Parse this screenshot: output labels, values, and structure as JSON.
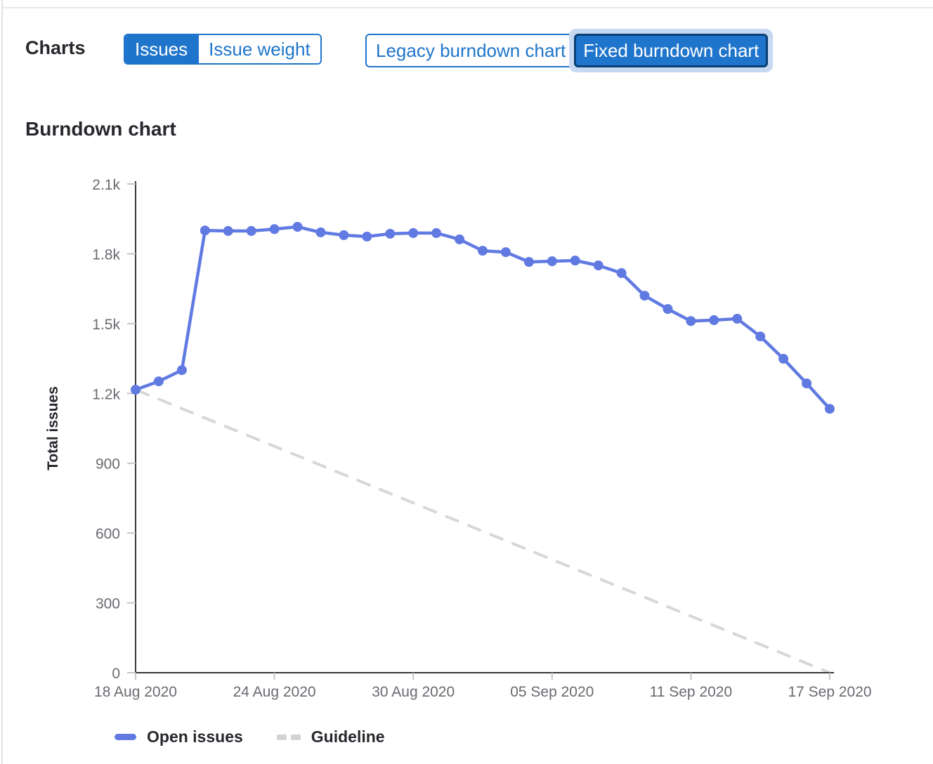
{
  "page": {
    "charts_label": "Charts",
    "section_title": "Burndown chart"
  },
  "toggles": {
    "metric": {
      "options": [
        {
          "label": "Issues",
          "selected": true
        },
        {
          "label": "Issue weight",
          "selected": false
        }
      ]
    },
    "chart_version": {
      "options": [
        {
          "label": "Legacy burndown chart",
          "selected": false
        },
        {
          "label": "Fixed burndown chart",
          "selected": true
        }
      ]
    }
  },
  "colors": {
    "accent_blue": "#1f75cb",
    "selected_border": "#0a3f73",
    "focus_ring": "#c6d8f2",
    "series_blue": "#617ae2",
    "guideline_gray": "#d7d7d9",
    "axis_line": "#38363e",
    "tick_mark": "#c6c6c9",
    "tick_text": "#6b6a71",
    "heading_text": "#28272d"
  },
  "chart_data": {
    "type": "line",
    "title": "Burndown chart",
    "xlabel": "",
    "ylabel": "Total issues",
    "ylim": [
      0,
      2100
    ],
    "grid": false,
    "legend_position": "bottom",
    "x": [
      "18 Aug 2020",
      "19 Aug 2020",
      "20 Aug 2020",
      "21 Aug 2020",
      "22 Aug 2020",
      "23 Aug 2020",
      "24 Aug 2020",
      "25 Aug 2020",
      "26 Aug 2020",
      "27 Aug 2020",
      "28 Aug 2020",
      "29 Aug 2020",
      "30 Aug 2020",
      "31 Aug 2020",
      "01 Sep 2020",
      "02 Sep 2020",
      "03 Sep 2020",
      "04 Sep 2020",
      "05 Sep 2020",
      "06 Sep 2020",
      "07 Sep 2020",
      "08 Sep 2020",
      "09 Sep 2020",
      "10 Sep 2020",
      "11 Sep 2020",
      "12 Sep 2020",
      "13 Sep 2020",
      "14 Sep 2020",
      "15 Sep 2020",
      "16 Sep 2020",
      "17 Sep 2020"
    ],
    "x_tick_indices": [
      0,
      6,
      12,
      18,
      24,
      30
    ],
    "x_tick_labels": [
      "18 Aug 2020",
      "24 Aug 2020",
      "30 Aug 2020",
      "05 Sep 2020",
      "11 Sep 2020",
      "17 Sep 2020"
    ],
    "y_ticks": [
      {
        "value": 0,
        "label": "0"
      },
      {
        "value": 300,
        "label": "300"
      },
      {
        "value": 600,
        "label": "600"
      },
      {
        "value": 900,
        "label": "900"
      },
      {
        "value": 1200,
        "label": "1.2k"
      },
      {
        "value": 1500,
        "label": "1.5k"
      },
      {
        "value": 1800,
        "label": "1.8k"
      },
      {
        "value": 2100,
        "label": "2.1k"
      }
    ],
    "series": [
      {
        "name": "Open issues",
        "style": "solid",
        "color": "#617ae2",
        "values": [
          1216,
          1252,
          1300,
          1900,
          1898,
          1898,
          1906,
          1916,
          1892,
          1880,
          1874,
          1886,
          1889,
          1889,
          1862,
          1813,
          1807,
          1765,
          1768,
          1771,
          1750,
          1717,
          1620,
          1563,
          1511,
          1515,
          1521,
          1445,
          1349,
          1243,
          1134
        ]
      },
      {
        "name": "Guideline",
        "style": "dashed",
        "color": "#d7d7d9",
        "start_value": 1216,
        "end_value": 0
      }
    ],
    "legend": [
      {
        "label": "Open issues",
        "swatch": "solid-blue-line"
      },
      {
        "label": "Guideline",
        "swatch": "gray-dashes"
      }
    ]
  }
}
